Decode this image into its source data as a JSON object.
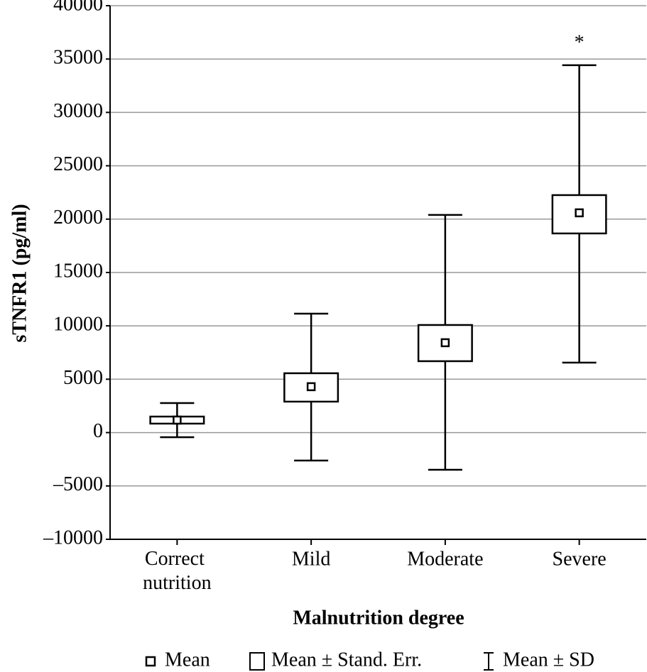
{
  "chart_data": {
    "type": "box",
    "y_label": "sTNFR1 (pg/ml)",
    "x_label": "Malnutrition degree",
    "categories": [
      "Correct nutrition",
      "Mild",
      "Moderate",
      "Severe"
    ],
    "mean": [
      1170,
      4300,
      8420,
      20590
    ],
    "se_low": [
      840,
      2900,
      6690,
      18660
    ],
    "se_high": [
      1500,
      5560,
      10080,
      22250
    ],
    "sd_low": [
      -430,
      -2620,
      -3480,
      6560
    ],
    "sd_high": [
      2770,
      11140,
      20390,
      34420
    ],
    "color": "#000000",
    "ylim": [
      -10000,
      40000
    ],
    "yticks": [
      {
        "value": -10000,
        "label": "–10000"
      },
      {
        "value": -5000,
        "label": "–5000"
      },
      0,
      5000,
      10000,
      15000,
      20000,
      25000,
      30000,
      35000,
      40000
    ],
    "grid": true,
    "annotations": [
      {
        "category": 3,
        "text": "*"
      }
    ],
    "legend": [
      "Mean",
      "Mean ± Stand. Err.",
      "Mean ± SD"
    ]
  }
}
